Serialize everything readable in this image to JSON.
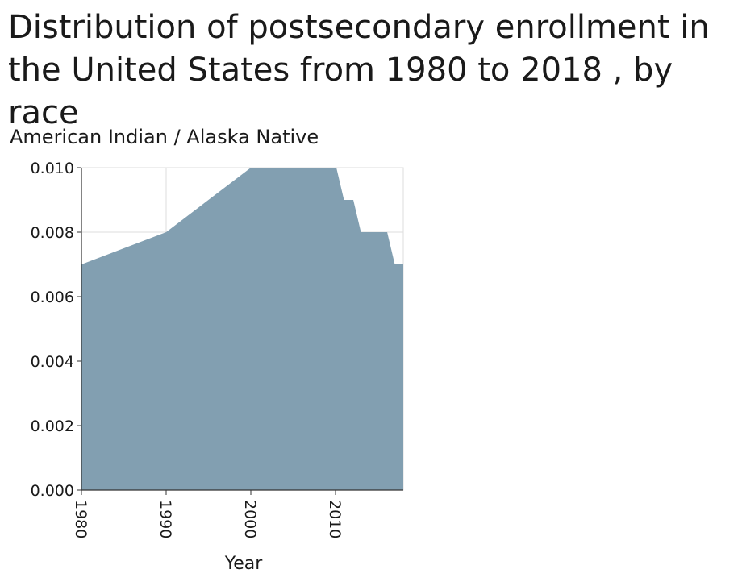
{
  "chart_data": {
    "type": "area",
    "title": "Distribution of postsecondary enrollment in the United States from 1980 to 2018 , by race",
    "ylabel": "American Indian / Alaska Native",
    "xlabel": "Year",
    "x": [
      1980,
      1990,
      2000,
      2001,
      2002,
      2003,
      2004,
      2005,
      2006,
      2007,
      2008,
      2009,
      2010,
      2011,
      2012,
      2013,
      2014,
      2015,
      2016,
      2017,
      2018
    ],
    "series": [
      {
        "values": [
          0.007,
          0.008,
          0.01,
          0.01,
          0.01,
          0.01,
          0.01,
          0.01,
          0.01,
          0.01,
          0.01,
          0.01,
          0.01,
          0.009,
          0.009,
          0.008,
          0.008,
          0.008,
          0.008,
          0.007,
          0.007
        ]
      }
    ],
    "xlim": [
      1980,
      2018
    ],
    "ylim": [
      0,
      0.01
    ],
    "x_ticks": [
      "1980",
      "1990",
      "2000",
      "2010"
    ],
    "y_ticks": [
      "0.000",
      "0.002",
      "0.004",
      "0.006",
      "0.008",
      "0.010"
    ],
    "grid": true,
    "fill_color": "#829fb1"
  }
}
